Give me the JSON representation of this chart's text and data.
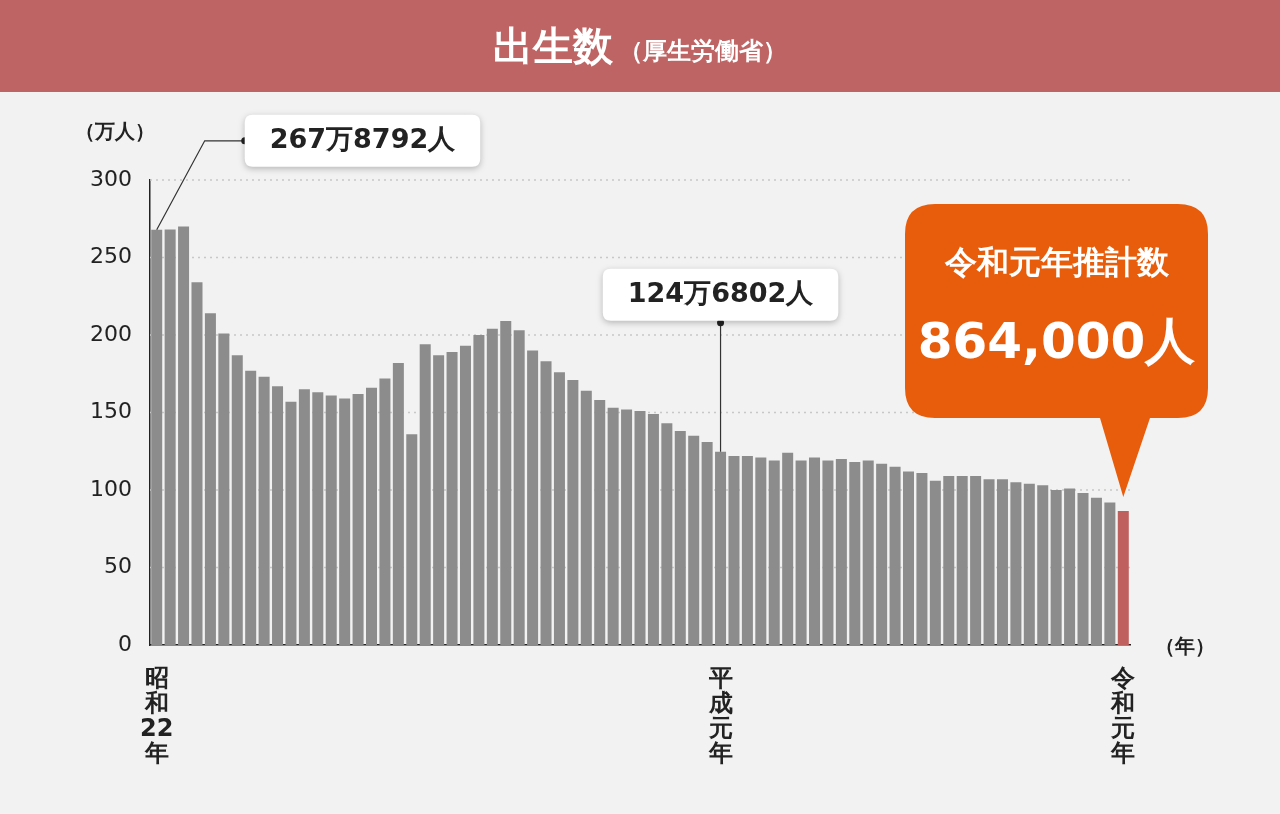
{
  "chart_data": {
    "type": "bar",
    "title": "出生数",
    "subtitle": "（厚生労働省）",
    "ylabel": "（万人）",
    "xlabel": "（年）",
    "categories": [
      "昭和22年",
      null,
      null,
      null,
      null,
      null,
      null,
      null,
      null,
      null,
      null,
      null,
      null,
      null,
      null,
      null,
      null,
      null,
      null,
      null,
      null,
      null,
      null,
      null,
      null,
      null,
      null,
      null,
      null,
      null,
      null,
      null,
      null,
      null,
      null,
      null,
      null,
      null,
      null,
      null,
      null,
      null,
      "平成元年",
      null,
      null,
      null,
      null,
      null,
      null,
      null,
      null,
      null,
      null,
      null,
      null,
      null,
      null,
      null,
      null,
      null,
      null,
      null,
      null,
      null,
      null,
      null,
      null,
      null,
      null,
      null,
      null,
      null,
      "令和元年"
    ],
    "values": [
      267.9,
      268,
      270,
      234,
      214,
      201,
      187,
      177,
      173,
      167,
      157,
      165,
      163,
      161,
      159,
      162,
      166,
      172,
      182,
      136,
      194,
      187,
      189,
      193,
      200,
      204,
      209,
      203,
      190,
      183,
      176,
      171,
      164,
      158,
      153,
      152,
      151,
      149,
      143,
      138,
      135,
      131,
      124.7,
      122,
      122,
      121,
      119,
      124,
      119,
      121,
      119,
      120,
      118,
      119,
      117,
      115,
      112,
      111,
      106,
      109,
      109,
      109,
      107,
      107,
      105,
      104,
      103,
      100,
      101,
      98,
      95,
      92,
      86.4
    ],
    "colors": [
      "#8c8c8c",
      "#8c8c8c",
      "#8c8c8c",
      "#8c8c8c",
      "#8c8c8c",
      "#8c8c8c",
      "#8c8c8c",
      "#8c8c8c",
      "#8c8c8c",
      "#8c8c8c",
      "#8c8c8c",
      "#8c8c8c",
      "#8c8c8c",
      "#8c8c8c",
      "#8c8c8c",
      "#8c8c8c",
      "#8c8c8c",
      "#8c8c8c",
      "#8c8c8c",
      "#8c8c8c",
      "#8c8c8c",
      "#8c8c8c",
      "#8c8c8c",
      "#8c8c8c",
      "#8c8c8c",
      "#8c8c8c",
      "#8c8c8c",
      "#8c8c8c",
      "#8c8c8c",
      "#8c8c8c",
      "#8c8c8c",
      "#8c8c8c",
      "#8c8c8c",
      "#8c8c8c",
      "#8c8c8c",
      "#8c8c8c",
      "#8c8c8c",
      "#8c8c8c",
      "#8c8c8c",
      "#8c8c8c",
      "#8c8c8c",
      "#8c8c8c",
      "#8c8c8c",
      "#8c8c8c",
      "#8c8c8c",
      "#8c8c8c",
      "#8c8c8c",
      "#8c8c8c",
      "#8c8c8c",
      "#8c8c8c",
      "#8c8c8c",
      "#8c8c8c",
      "#8c8c8c",
      "#8c8c8c",
      "#8c8c8c",
      "#8c8c8c",
      "#8c8c8c",
      "#8c8c8c",
      "#8c8c8c",
      "#8c8c8c",
      "#8c8c8c",
      "#8c8c8c",
      "#8c8c8c",
      "#8c8c8c",
      "#8c8c8c",
      "#8c8c8c",
      "#8c8c8c",
      "#8c8c8c",
      "#8c8c8c",
      "#8c8c8c",
      "#8c8c8c",
      "#8c8c8c",
      "#c0605e"
    ],
    "ylim": [
      0,
      300
    ],
    "yticks": [
      0,
      50,
      100,
      150,
      200,
      250,
      300
    ],
    "grid": "y",
    "legend": false,
    "annotations": [
      {
        "text": "267万8792人",
        "x": "昭和22年",
        "y": 267.8792
      },
      {
        "text": "124万6802人",
        "x": "平成元年",
        "y": 124.6802
      },
      {
        "text": "令和元年推計数\n864,000人",
        "x": "令和元年",
        "y": 86.4
      }
    ]
  }
}
